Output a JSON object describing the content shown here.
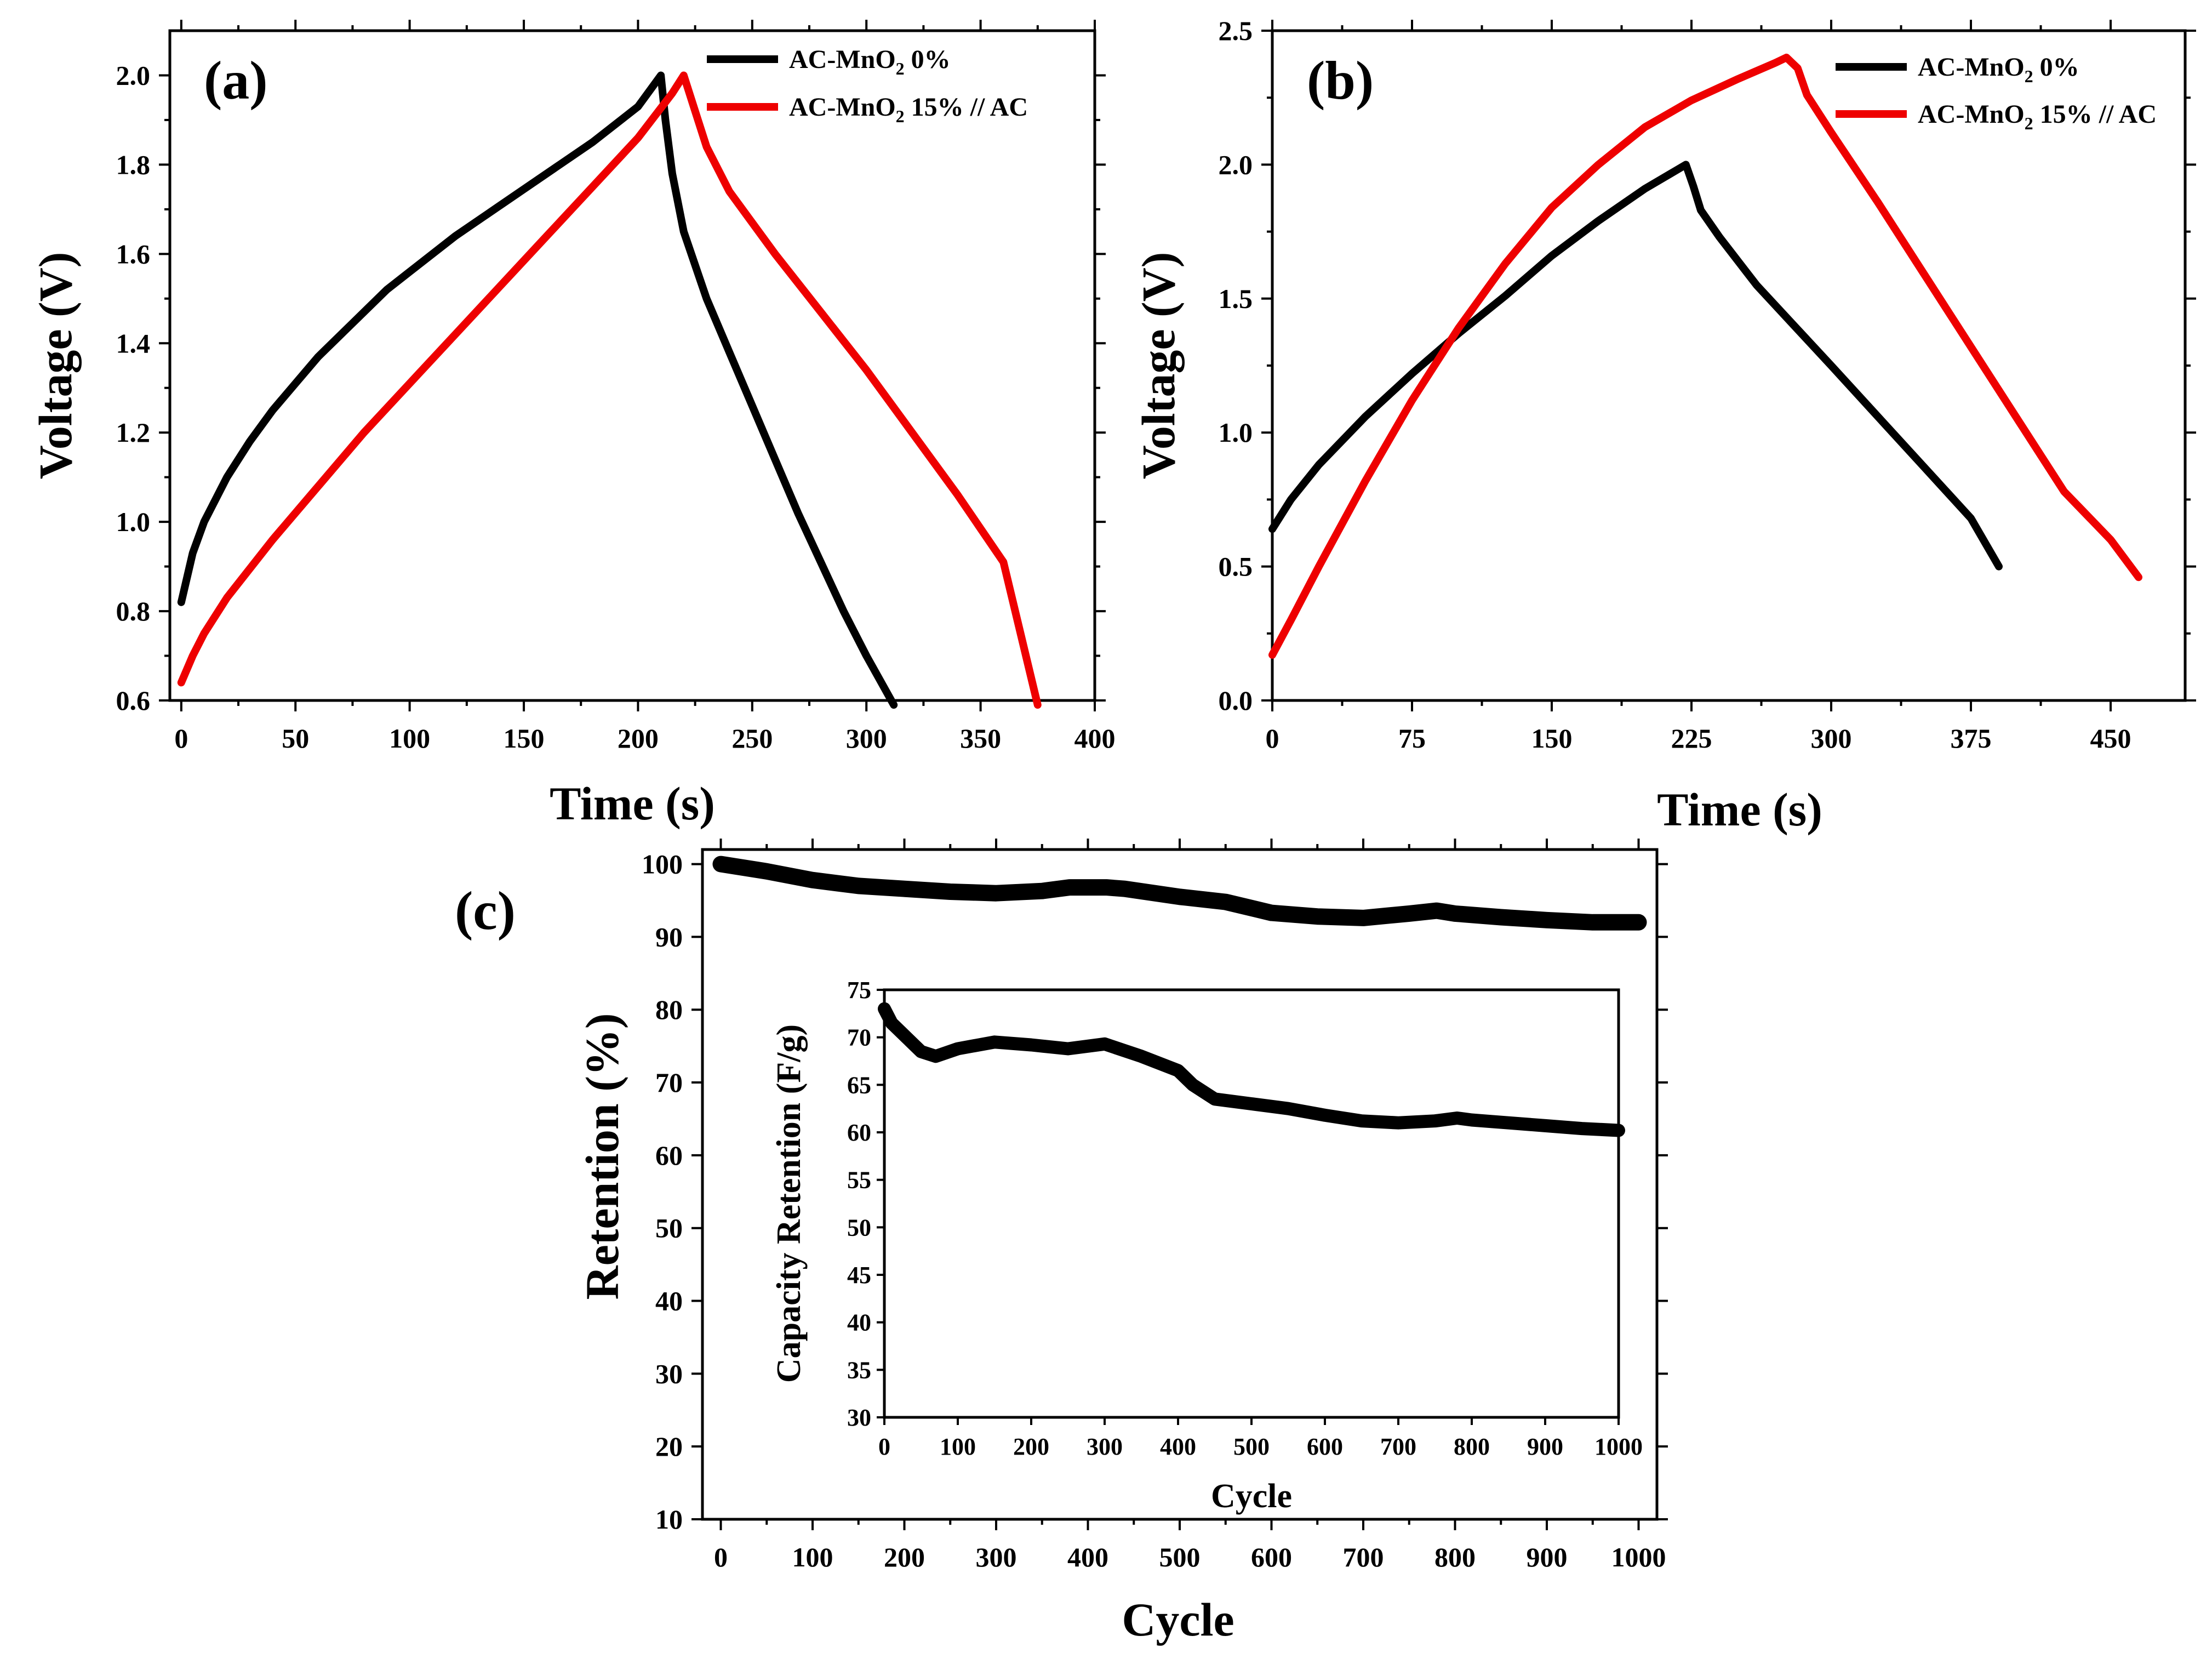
{
  "chart_data": [
    {
      "panel": "(a)",
      "type": "line",
      "xlabel": "Time (s)",
      "ylabel": "Voltage (V)",
      "xlim": [
        -5,
        400
      ],
      "ylim": [
        0.6,
        2.1
      ],
      "xticks": [
        0,
        50,
        100,
        150,
        200,
        250,
        300,
        350,
        400
      ],
      "yticks": [
        0.6,
        0.8,
        1.0,
        1.2,
        1.4,
        1.6,
        1.8,
        2.0
      ],
      "legend_position": "top-right",
      "series": [
        {
          "name": "AC-MnO2 0%",
          "color": "#000000",
          "points": [
            [
              0,
              0.82
            ],
            [
              5,
              0.93
            ],
            [
              10,
              1.0
            ],
            [
              20,
              1.1
            ],
            [
              30,
              1.18
            ],
            [
              40,
              1.25
            ],
            [
              50,
              1.31
            ],
            [
              60,
              1.37
            ],
            [
              70,
              1.42
            ],
            [
              80,
              1.47
            ],
            [
              90,
              1.52
            ],
            [
              100,
              1.56
            ],
            [
              120,
              1.64
            ],
            [
              140,
              1.71
            ],
            [
              160,
              1.78
            ],
            [
              180,
              1.85
            ],
            [
              200,
              1.93
            ],
            [
              210,
              2.0
            ],
            [
              212,
              1.9
            ],
            [
              215,
              1.78
            ],
            [
              220,
              1.65
            ],
            [
              230,
              1.5
            ],
            [
              240,
              1.38
            ],
            [
              250,
              1.26
            ],
            [
              260,
              1.14
            ],
            [
              270,
              1.02
            ],
            [
              280,
              0.91
            ],
            [
              290,
              0.8
            ],
            [
              300,
              0.7
            ],
            [
              312,
              0.59
            ]
          ]
        },
        {
          "name": "AC-MnO2 15% // AC",
          "color": "#ee0000",
          "points": [
            [
              0,
              0.64
            ],
            [
              5,
              0.7
            ],
            [
              10,
              0.75
            ],
            [
              20,
              0.83
            ],
            [
              40,
              0.96
            ],
            [
              60,
              1.08
            ],
            [
              80,
              1.2
            ],
            [
              100,
              1.31
            ],
            [
              120,
              1.42
            ],
            [
              140,
              1.53
            ],
            [
              160,
              1.64
            ],
            [
              180,
              1.75
            ],
            [
              200,
              1.86
            ],
            [
              215,
              1.96
            ],
            [
              220,
              2.0
            ],
            [
              225,
              1.92
            ],
            [
              230,
              1.84
            ],
            [
              240,
              1.74
            ],
            [
              260,
              1.6
            ],
            [
              280,
              1.47
            ],
            [
              300,
              1.34
            ],
            [
              320,
              1.2
            ],
            [
              340,
              1.06
            ],
            [
              360,
              0.91
            ],
            [
              375,
              0.59
            ]
          ]
        }
      ]
    },
    {
      "panel": "(b)",
      "type": "line",
      "xlabel": "Time (s)",
      "ylabel": "Voltage (V)",
      "xlim": [
        0,
        490
      ],
      "ylim": [
        0,
        2.5
      ],
      "xticks": [
        0,
        75,
        150,
        225,
        300,
        375,
        450
      ],
      "yticks": [
        0.0,
        0.5,
        1.0,
        1.5,
        2.0,
        2.5
      ],
      "legend_position": "top-right",
      "series": [
        {
          "name": "AC-MnO2 0%",
          "color": "#000000",
          "points": [
            [
              0,
              0.64
            ],
            [
              10,
              0.75
            ],
            [
              25,
              0.88
            ],
            [
              50,
              1.06
            ],
            [
              75,
              1.22
            ],
            [
              100,
              1.37
            ],
            [
              125,
              1.51
            ],
            [
              150,
              1.66
            ],
            [
              175,
              1.79
            ],
            [
              200,
              1.91
            ],
            [
              222,
              2.0
            ],
            [
              226,
              1.92
            ],
            [
              230,
              1.83
            ],
            [
              240,
              1.73
            ],
            [
              260,
              1.55
            ],
            [
              280,
              1.4
            ],
            [
              300,
              1.25
            ],
            [
              325,
              1.06
            ],
            [
              350,
              0.87
            ],
            [
              375,
              0.68
            ],
            [
              390,
              0.5
            ]
          ]
        },
        {
          "name": "AC-MnO2 15% // AC",
          "color": "#ee0000",
          "points": [
            [
              0,
              0.17
            ],
            [
              10,
              0.3
            ],
            [
              25,
              0.5
            ],
            [
              50,
              0.82
            ],
            [
              75,
              1.12
            ],
            [
              100,
              1.39
            ],
            [
              125,
              1.63
            ],
            [
              150,
              1.84
            ],
            [
              175,
              2.0
            ],
            [
              200,
              2.14
            ],
            [
              225,
              2.24
            ],
            [
              250,
              2.32
            ],
            [
              270,
              2.38
            ],
            [
              276,
              2.4
            ],
            [
              282,
              2.36
            ],
            [
              287,
              2.26
            ],
            [
              300,
              2.12
            ],
            [
              325,
              1.86
            ],
            [
              350,
              1.59
            ],
            [
              375,
              1.32
            ],
            [
              400,
              1.05
            ],
            [
              425,
              0.78
            ],
            [
              450,
              0.6
            ],
            [
              465,
              0.46
            ]
          ]
        }
      ]
    },
    {
      "panel": "(c)",
      "type": "line",
      "xlabel": "Cycle",
      "ylabel": "Retention (%)",
      "xlim": [
        -20,
        1020
      ],
      "ylim": [
        10,
        102
      ],
      "xticks": [
        0,
        100,
        200,
        300,
        400,
        500,
        600,
        700,
        800,
        900,
        1000
      ],
      "yticks": [
        10,
        20,
        30,
        40,
        50,
        60,
        70,
        80,
        90,
        100
      ],
      "series": [
        {
          "name": "",
          "color": "#000000",
          "points": [
            [
              0,
              100
            ],
            [
              50,
              99
            ],
            [
              100,
              97.8
            ],
            [
              150,
              97
            ],
            [
              200,
              96.6
            ],
            [
              250,
              96.2
            ],
            [
              300,
              96
            ],
            [
              350,
              96.3
            ],
            [
              380,
              96.8
            ],
            [
              420,
              96.8
            ],
            [
              440,
              96.6
            ],
            [
              500,
              95.5
            ],
            [
              550,
              94.8
            ],
            [
              600,
              93.3
            ],
            [
              650,
              92.8
            ],
            [
              700,
              92.6
            ],
            [
              750,
              93.2
            ],
            [
              780,
              93.6
            ],
            [
              800,
              93.2
            ],
            [
              850,
              92.7
            ],
            [
              900,
              92.3
            ],
            [
              950,
              92
            ],
            [
              1000,
              92
            ]
          ]
        }
      ],
      "inset": {
        "type": "line",
        "xlabel": "Cycle",
        "ylabel": "Capacity Retention (F/g)",
        "xlim": [
          0,
          1000
        ],
        "ylim": [
          30,
          75
        ],
        "xticks": [
          0,
          100,
          200,
          300,
          400,
          500,
          600,
          700,
          800,
          900,
          1000
        ],
        "yticks": [
          30,
          35,
          40,
          45,
          50,
          55,
          60,
          65,
          70,
          75
        ],
        "series": [
          {
            "name": "",
            "color": "#000000",
            "points": [
              [
                0,
                73
              ],
              [
                10,
                71.5
              ],
              [
                30,
                70
              ],
              [
                50,
                68.5
              ],
              [
                70,
                68
              ],
              [
                100,
                68.8
              ],
              [
                150,
                69.5
              ],
              [
                200,
                69.2
              ],
              [
                250,
                68.8
              ],
              [
                300,
                69.3
              ],
              [
                350,
                68
              ],
              [
                400,
                66.5
              ],
              [
                420,
                65
              ],
              [
                450,
                63.5
              ],
              [
                500,
                63
              ],
              [
                550,
                62.5
              ],
              [
                600,
                61.8
              ],
              [
                650,
                61.2
              ],
              [
                700,
                61
              ],
              [
                750,
                61.2
              ],
              [
                780,
                61.5
              ],
              [
                800,
                61.3
              ],
              [
                850,
                61
              ],
              [
                900,
                60.7
              ],
              [
                950,
                60.4
              ],
              [
                1000,
                60.2
              ]
            ]
          }
        ]
      }
    }
  ]
}
